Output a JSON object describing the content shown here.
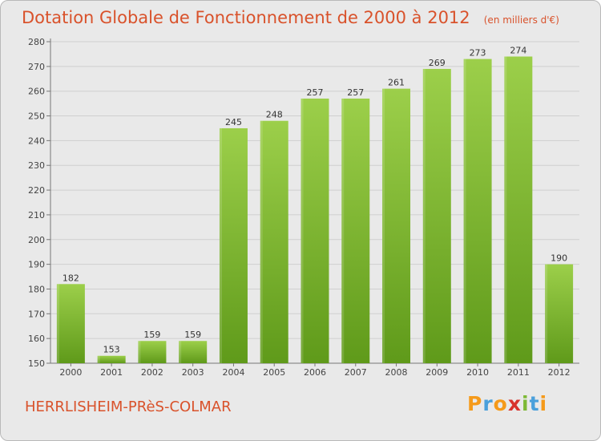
{
  "header": {
    "title": "Dotation Globale de Fonctionnement de 2000 à 2012",
    "unit": "(en milliers d'€)"
  },
  "footer": {
    "commune": "HERRLISHEIM-PRèS-COLMAR",
    "logo_letters": [
      "P",
      "r",
      "o",
      "x",
      "i",
      "t",
      "i"
    ],
    "logo_colors": [
      "#f59a1a",
      "#4aa0db",
      "#f59a1a",
      "#d8322d",
      "#7db935",
      "#4aa0db",
      "#f59a1a"
    ]
  },
  "colors": {
    "bar_top": "#9ccf4a",
    "bar_bottom": "#5f9a1a",
    "plot_bg": "#e9e9e9",
    "grid": "#cfcfcf"
  },
  "chart_data": {
    "type": "bar",
    "title": "Dotation Globale de Fonctionnement de 2000 à 2012",
    "subtitle": "(en milliers d'€)",
    "categories": [
      "2000",
      "2001",
      "2002",
      "2003",
      "2004",
      "2005",
      "2006",
      "2007",
      "2008",
      "2009",
      "2010",
      "2011",
      "2012"
    ],
    "values": [
      182,
      153,
      159,
      159,
      245,
      248,
      257,
      257,
      261,
      269,
      273,
      274,
      190
    ],
    "ylim": [
      150,
      280
    ],
    "yticks": [
      150,
      160,
      170,
      180,
      190,
      200,
      210,
      220,
      230,
      240,
      250,
      260,
      270,
      280
    ],
    "grid": true,
    "xlabel": "",
    "ylabel": ""
  }
}
